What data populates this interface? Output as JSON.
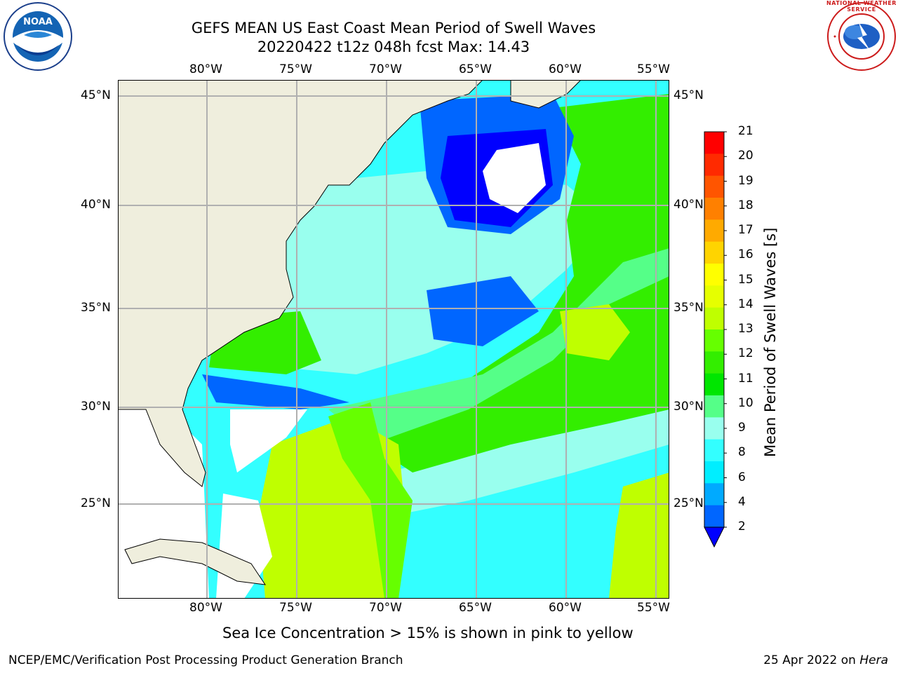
{
  "header": {
    "title_line1": "GEFS MEAN US East Coast Mean Period of Swell Waves",
    "title_line2": "20220422 t12z 048h fcst   Max: 14.43"
  },
  "logos": {
    "left": "NOAA",
    "right": "NATIONAL WEATHER SERVICE"
  },
  "map": {
    "lon_labels": [
      "80°W",
      "75°W",
      "70°W",
      "65°W",
      "60°W",
      "55°W"
    ],
    "lat_labels": [
      "45°N",
      "40°N",
      "35°N",
      "30°N",
      "25°N"
    ],
    "land_color": "#efeedd",
    "gridline_color": "#b0b0b0"
  },
  "colorbar": {
    "label": "Mean Period of Swell Waves [s]",
    "ticks": [
      "21",
      "20",
      "19",
      "18",
      "17",
      "16",
      "15",
      "14",
      "13",
      "12",
      "11",
      "10",
      "9",
      "8",
      "6",
      "4",
      "2"
    ],
    "colors": [
      "#ff0000",
      "#ff2a00",
      "#ff5500",
      "#ff8000",
      "#ffaa00",
      "#ffd400",
      "#ffff00",
      "#e6ff00",
      "#bfff00",
      "#66ff00",
      "#33ee00",
      "#00e600",
      "#55ff88",
      "#99ffee",
      "#33ffff",
      "#00eeff",
      "#00aaff",
      "#0066ff"
    ],
    "under_color": "#0000ff"
  },
  "notes": {
    "sea_ice": "Sea Ice Concentration > 15% is shown in pink to yellow"
  },
  "footer": {
    "left": "NCEP/EMC/Verification Post Processing Product Generation Branch",
    "right_date": "25 Apr 2022 on ",
    "right_machine": "Hera"
  }
}
